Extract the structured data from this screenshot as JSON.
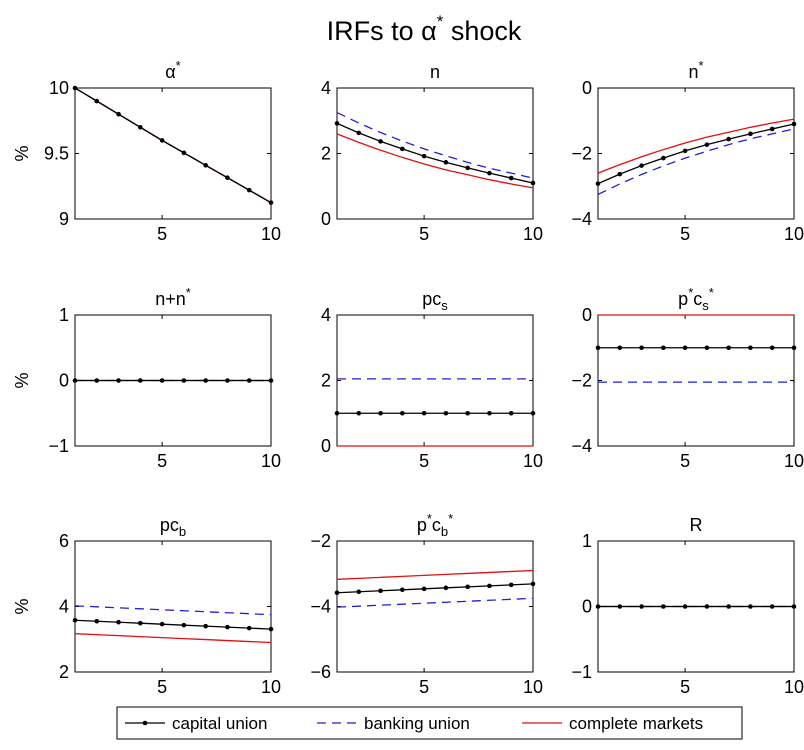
{
  "figure": {
    "title_main": "IRFs to α",
    "title_sup": "*",
    "title_tail": " shock"
  },
  "legend": {
    "placement": "bottom-center",
    "entries": [
      {
        "key": "capital",
        "label": "capital union",
        "color": "#000000",
        "style": "solid-dots"
      },
      {
        "key": "banking",
        "label": "banking union",
        "color": "#1f1fd6",
        "style": "dashed"
      },
      {
        "key": "complete",
        "label": "complete markets",
        "color": "#e01010",
        "style": "solid"
      }
    ]
  },
  "chart_data": [
    {
      "type": "line",
      "title_parts": [
        [
          "α",
          ""
        ],
        [
          "*",
          "sup"
        ]
      ],
      "ylabel": "%",
      "xlim": [
        1,
        10
      ],
      "ylim": [
        9,
        10
      ],
      "xticks": [
        5,
        10
      ],
      "yticks": [
        9,
        9.5,
        10
      ],
      "ytick_labels": [
        "9",
        "9.5",
        "10"
      ],
      "x": [
        1,
        2,
        3,
        4,
        5,
        6,
        7,
        8,
        9,
        10
      ],
      "series": [
        {
          "key": "capital",
          "values": [
            10,
            9.9,
            9.8,
            9.7,
            9.6,
            9.505,
            9.41,
            9.315,
            9.22,
            9.125
          ]
        },
        {
          "key": "banking",
          "values": [
            10,
            9.9,
            9.8,
            9.7,
            9.6,
            9.505,
            9.41,
            9.315,
            9.22,
            9.125
          ]
        },
        {
          "key": "complete",
          "values": [
            10,
            9.9,
            9.8,
            9.7,
            9.6,
            9.505,
            9.41,
            9.315,
            9.22,
            9.125
          ]
        }
      ]
    },
    {
      "type": "line",
      "title_parts": [
        [
          "n",
          ""
        ]
      ],
      "ylabel": "",
      "xlim": [
        1,
        10
      ],
      "ylim": [
        0,
        4
      ],
      "xticks": [
        5,
        10
      ],
      "yticks": [
        0,
        2,
        4
      ],
      "ytick_labels": [
        "0",
        "2",
        "4"
      ],
      "x": [
        1,
        2,
        3,
        4,
        5,
        6,
        7,
        8,
        9,
        10
      ],
      "series": [
        {
          "key": "capital",
          "values": [
            2.92,
            2.63,
            2.37,
            2.14,
            1.92,
            1.73,
            1.56,
            1.4,
            1.25,
            1.1
          ]
        },
        {
          "key": "banking",
          "values": [
            3.25,
            2.93,
            2.64,
            2.38,
            2.14,
            1.93,
            1.73,
            1.55,
            1.4,
            1.25
          ]
        },
        {
          "key": "complete",
          "values": [
            2.6,
            2.34,
            2.1,
            1.88,
            1.68,
            1.5,
            1.35,
            1.2,
            1.07,
            0.95
          ]
        }
      ]
    },
    {
      "type": "line",
      "title_parts": [
        [
          "n",
          ""
        ],
        [
          "*",
          "sup"
        ]
      ],
      "ylabel": "",
      "xlim": [
        1,
        10
      ],
      "ylim": [
        -4,
        0
      ],
      "xticks": [
        5,
        10
      ],
      "yticks": [
        -4,
        -2,
        0
      ],
      "ytick_labels": [
        "−4",
        "−2",
        "0"
      ],
      "x": [
        1,
        2,
        3,
        4,
        5,
        6,
        7,
        8,
        9,
        10
      ],
      "series": [
        {
          "key": "capital",
          "values": [
            -2.92,
            -2.63,
            -2.37,
            -2.14,
            -1.92,
            -1.73,
            -1.56,
            -1.4,
            -1.25,
            -1.1
          ]
        },
        {
          "key": "banking",
          "values": [
            -3.25,
            -2.93,
            -2.64,
            -2.38,
            -2.14,
            -1.93,
            -1.73,
            -1.55,
            -1.4,
            -1.25
          ]
        },
        {
          "key": "complete",
          "values": [
            -2.6,
            -2.34,
            -2.1,
            -1.88,
            -1.68,
            -1.5,
            -1.35,
            -1.2,
            -1.07,
            -0.95
          ]
        }
      ]
    },
    {
      "type": "line",
      "title_parts": [
        [
          "n+n",
          ""
        ],
        [
          "*",
          "sup"
        ]
      ],
      "ylabel": "%",
      "xlim": [
        1,
        10
      ],
      "ylim": [
        -1,
        1
      ],
      "xticks": [
        5,
        10
      ],
      "yticks": [
        -1,
        0,
        1
      ],
      "ytick_labels": [
        "−1",
        "0",
        "1"
      ],
      "x": [
        1,
        2,
        3,
        4,
        5,
        6,
        7,
        8,
        9,
        10
      ],
      "series": [
        {
          "key": "capital",
          "values": [
            0,
            0,
            0,
            0,
            0,
            0,
            0,
            0,
            0,
            0
          ]
        },
        {
          "key": "banking",
          "values": [
            0,
            0,
            0,
            0,
            0,
            0,
            0,
            0,
            0,
            0
          ]
        },
        {
          "key": "complete",
          "values": [
            0,
            0,
            0,
            0,
            0,
            0,
            0,
            0,
            0,
            0
          ]
        }
      ]
    },
    {
      "type": "line",
      "title_parts": [
        [
          "pc",
          ""
        ],
        [
          "s",
          "sub"
        ]
      ],
      "ylabel": "",
      "xlim": [
        1,
        10
      ],
      "ylim": [
        0,
        4
      ],
      "xticks": [
        5,
        10
      ],
      "yticks": [
        0,
        2,
        4
      ],
      "ytick_labels": [
        "0",
        "2",
        "4"
      ],
      "x": [
        1,
        2,
        3,
        4,
        5,
        6,
        7,
        8,
        9,
        10
      ],
      "series": [
        {
          "key": "capital",
          "values": [
            1,
            1,
            1,
            1,
            1,
            1,
            1,
            1,
            1,
            1
          ]
        },
        {
          "key": "banking",
          "values": [
            2.05,
            2.05,
            2.05,
            2.05,
            2.05,
            2.05,
            2.05,
            2.05,
            2.05,
            2.05
          ]
        },
        {
          "key": "complete",
          "values": [
            0,
            0,
            0,
            0,
            0,
            0,
            0,
            0,
            0,
            0
          ]
        }
      ]
    },
    {
      "type": "line",
      "title_parts": [
        [
          "p",
          ""
        ],
        [
          "*",
          "sup"
        ],
        [
          "c",
          ""
        ],
        [
          "s",
          "sub"
        ],
        [
          "*",
          "sup"
        ]
      ],
      "ylabel": "",
      "xlim": [
        1,
        10
      ],
      "ylim": [
        -4,
        0
      ],
      "xticks": [
        5,
        10
      ],
      "yticks": [
        -4,
        -2,
        0
      ],
      "ytick_labels": [
        "−4",
        "−2",
        "0"
      ],
      "x": [
        1,
        2,
        3,
        4,
        5,
        6,
        7,
        8,
        9,
        10
      ],
      "series": [
        {
          "key": "capital",
          "values": [
            -1,
            -1,
            -1,
            -1,
            -1,
            -1,
            -1,
            -1,
            -1,
            -1
          ]
        },
        {
          "key": "banking",
          "values": [
            -2.05,
            -2.05,
            -2.05,
            -2.05,
            -2.05,
            -2.05,
            -2.05,
            -2.05,
            -2.05,
            -2.05
          ]
        },
        {
          "key": "complete",
          "values": [
            0,
            0,
            0,
            0,
            0,
            0,
            0,
            0,
            0,
            0
          ]
        }
      ]
    },
    {
      "type": "line",
      "title_parts": [
        [
          "pc",
          ""
        ],
        [
          "b",
          "sub"
        ]
      ],
      "ylabel": "%",
      "xlim": [
        1,
        10
      ],
      "ylim": [
        2,
        6
      ],
      "xticks": [
        5,
        10
      ],
      "yticks": [
        2,
        4,
        6
      ],
      "ytick_labels": [
        "2",
        "4",
        "6"
      ],
      "x": [
        1,
        2,
        3,
        4,
        5,
        6,
        7,
        8,
        9,
        10
      ],
      "series": [
        {
          "key": "capital",
          "values": [
            3.58,
            3.55,
            3.52,
            3.49,
            3.46,
            3.43,
            3.4,
            3.37,
            3.34,
            3.31
          ]
        },
        {
          "key": "banking",
          "values": [
            4.02,
            3.99,
            3.96,
            3.93,
            3.9,
            3.87,
            3.84,
            3.81,
            3.78,
            3.75
          ]
        },
        {
          "key": "complete",
          "values": [
            3.17,
            3.14,
            3.11,
            3.08,
            3.05,
            3.02,
            2.99,
            2.96,
            2.93,
            2.9
          ]
        }
      ]
    },
    {
      "type": "line",
      "title_parts": [
        [
          "p",
          ""
        ],
        [
          "*",
          "sup"
        ],
        [
          "c",
          ""
        ],
        [
          "b",
          "sub"
        ],
        [
          "*",
          "sup"
        ]
      ],
      "ylabel": "",
      "xlim": [
        1,
        10
      ],
      "ylim": [
        -6,
        -2
      ],
      "xticks": [
        5,
        10
      ],
      "yticks": [
        -6,
        -4,
        -2
      ],
      "ytick_labels": [
        "−6",
        "−4",
        "−2"
      ],
      "x": [
        1,
        2,
        3,
        4,
        5,
        6,
        7,
        8,
        9,
        10
      ],
      "series": [
        {
          "key": "capital",
          "values": [
            -3.58,
            -3.55,
            -3.52,
            -3.49,
            -3.46,
            -3.43,
            -3.4,
            -3.37,
            -3.34,
            -3.31
          ]
        },
        {
          "key": "banking",
          "values": [
            -4.02,
            -3.99,
            -3.96,
            -3.93,
            -3.9,
            -3.87,
            -3.84,
            -3.81,
            -3.78,
            -3.75
          ]
        },
        {
          "key": "complete",
          "values": [
            -3.17,
            -3.14,
            -3.11,
            -3.08,
            -3.05,
            -3.02,
            -2.99,
            -2.96,
            -2.93,
            -2.9
          ]
        }
      ]
    },
    {
      "type": "line",
      "title_parts": [
        [
          "R",
          ""
        ]
      ],
      "ylabel": "",
      "xlim": [
        1,
        10
      ],
      "ylim": [
        -1,
        1
      ],
      "xticks": [
        5,
        10
      ],
      "yticks": [
        -1,
        0,
        1
      ],
      "ytick_labels": [
        "−1",
        "0",
        "1"
      ],
      "x": [
        1,
        2,
        3,
        4,
        5,
        6,
        7,
        8,
        9,
        10
      ],
      "series": [
        {
          "key": "capital",
          "values": [
            0,
            0,
            0,
            0,
            0,
            0,
            0,
            0,
            0,
            0
          ]
        },
        {
          "key": "banking",
          "values": [
            0,
            0,
            0,
            0,
            0,
            0,
            0,
            0,
            0,
            0
          ]
        },
        {
          "key": "complete",
          "values": [
            0,
            0,
            0,
            0,
            0,
            0,
            0,
            0,
            0,
            0
          ]
        }
      ]
    }
  ]
}
